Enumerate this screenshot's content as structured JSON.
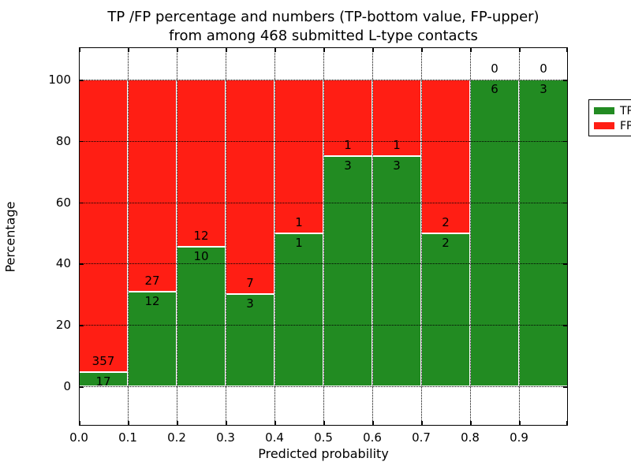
{
  "title": {
    "line1": "TP /FP percentage and numbers (TP-bottom value, FP-upper)",
    "line2": "from among 468 submitted L-type contacts"
  },
  "axes": {
    "x_label": "Predicted probability",
    "y_label": "Percentage",
    "x_tick_labels": [
      "0.0",
      "0.1",
      "0.2",
      "0.3",
      "0.4",
      "0.5",
      "0.6",
      "0.7",
      "0.8",
      "0.9"
    ],
    "y_tick_labels": [
      "0",
      "20",
      "40",
      "60",
      "80",
      "100"
    ],
    "y_tick_values": [
      0,
      20,
      40,
      60,
      80,
      100
    ]
  },
  "legend": {
    "position": "upper right",
    "items": [
      {
        "label": "TP",
        "color": "#228b22"
      },
      {
        "label": "FP",
        "color": "#ff1e14"
      }
    ]
  },
  "colors": {
    "tp": "#228b22",
    "fp": "#ff1e14",
    "background": "#ffffff",
    "grid": "#000000",
    "text": "#000000"
  },
  "chart_data": {
    "type": "bar",
    "stacked": true,
    "normalized_to_percent": true,
    "title": "TP /FP percentage and numbers (TP-bottom value, FP-upper) from among 468 submitted L-type contacts",
    "xlabel": "Predicted probability",
    "ylabel": "Percentage",
    "total_submitted_contacts": 468,
    "bin_width": 0.1,
    "bin_starts": [
      0.0,
      0.1,
      0.2,
      0.3,
      0.4,
      0.5,
      0.6,
      0.7,
      0.8,
      0.9
    ],
    "categories": [
      "0.0-0.1",
      "0.1-0.2",
      "0.2-0.3",
      "0.3-0.4",
      "0.4-0.5",
      "0.5-0.6",
      "0.6-0.7",
      "0.7-0.8",
      "0.8-0.9",
      "0.9-1.0"
    ],
    "series": [
      {
        "name": "TP",
        "color": "#228b22",
        "counts": [
          17,
          12,
          10,
          3,
          1,
          3,
          3,
          2,
          6,
          3
        ],
        "percent": [
          4.545,
          30.769,
          45.455,
          30,
          50,
          75,
          75,
          50,
          100,
          100
        ]
      },
      {
        "name": "FP",
        "color": "#ff1e14",
        "counts": [
          357,
          27,
          12,
          7,
          1,
          1,
          1,
          2,
          0,
          0
        ],
        "percent": [
          95.455,
          69.231,
          54.545,
          70,
          50,
          25,
          25,
          50,
          0,
          0
        ]
      }
    ],
    "xlim": [
      0.0,
      1.0
    ],
    "ylim": [
      -13,
      110
    ],
    "grid": true,
    "grid_style": "dotted",
    "legend_position": "upper right"
  }
}
